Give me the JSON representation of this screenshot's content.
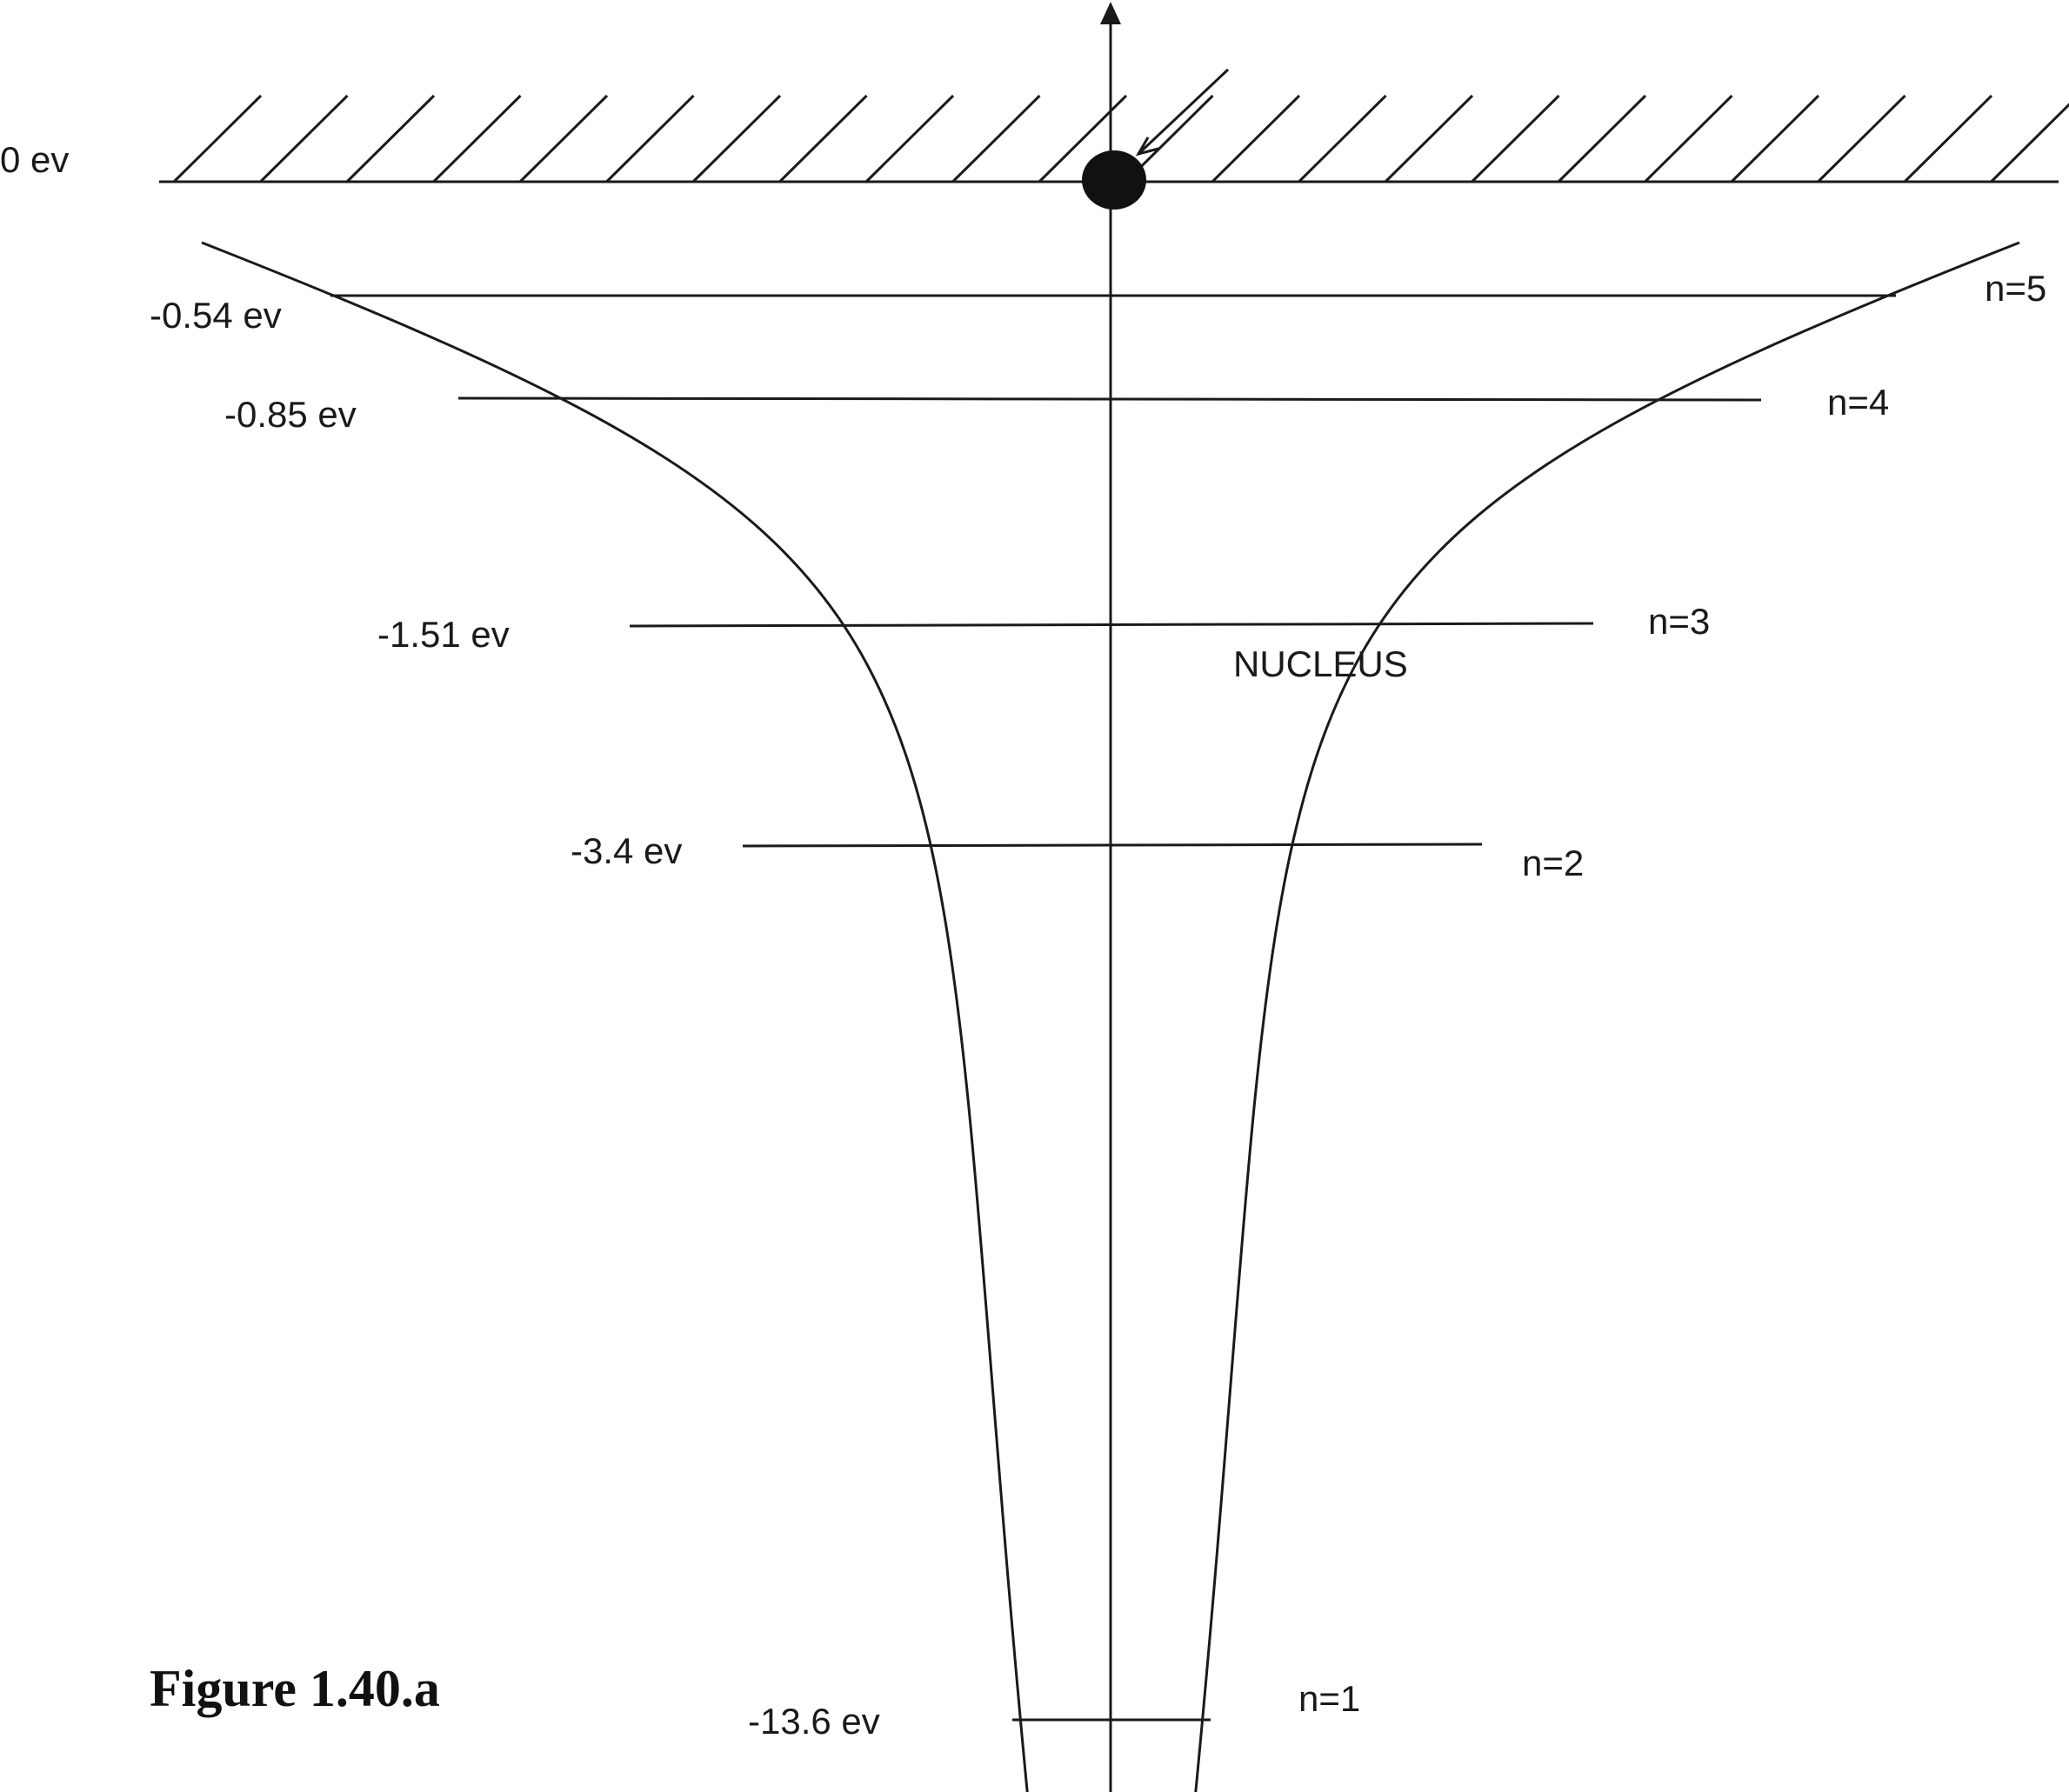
{
  "zero_level": {
    "label": "0 ev"
  },
  "nucleus_label": "NUCLEUS",
  "caption": "Figure 1.40.a",
  "levels": [
    {
      "n_label": "n=5",
      "energy_label": "-0.54 ev"
    },
    {
      "n_label": "n=4",
      "energy_label": "-0.85 ev"
    },
    {
      "n_label": "n=3",
      "energy_label": "-1.51 ev"
    },
    {
      "n_label": "n=2",
      "energy_label": "-3.4 ev"
    },
    {
      "n_label": "n=1",
      "energy_label": "-13.6 ev"
    }
  ],
  "colors": {
    "line": "#1a1a1a",
    "background": "#ffffff"
  }
}
